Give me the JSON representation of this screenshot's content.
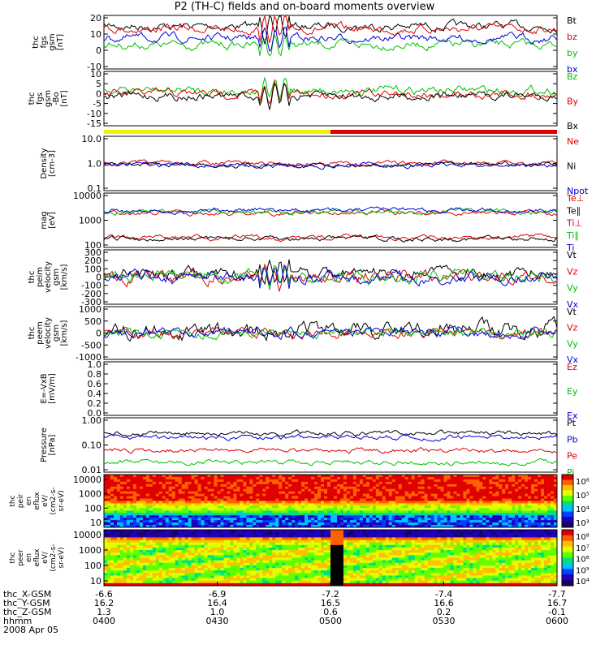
{
  "title": "P2 (TH-C) fields and on-board moments overview",
  "date": "2008 Apr 05",
  "colors": {
    "black": "#000000",
    "red": "#e00000",
    "blue": "#0000e0",
    "green": "#00c000",
    "yellow": "#f4f400"
  },
  "chart_data": [
    {
      "type": "line",
      "id": "fgs",
      "ylabel": "thc\nfgs\ngsm\n[nT]",
      "yticks": [
        "20",
        "10",
        "0",
        "-10"
      ],
      "ylim": [
        -20,
        20
      ],
      "series": [
        {
          "name": "Bt",
          "color": "black",
          "level": 12
        },
        {
          "name": "bz",
          "color": "red",
          "level": 10
        },
        {
          "name": "by",
          "color": "green",
          "level": -2
        },
        {
          "name": "bx",
          "color": "blue",
          "level": 3
        }
      ]
    },
    {
      "type": "line",
      "id": "fgs_dsl",
      "ylabel": "thc\nfgs\ngsm\n-Bo\n[nT]",
      "yticks": [
        "10",
        "5",
        "0",
        "-5",
        "-10",
        "-15"
      ],
      "ylim": [
        -17,
        12
      ],
      "series": [
        {
          "name": "Bz",
          "color": "green",
          "level": 2
        },
        {
          "name": "By",
          "color": "red",
          "level": 0
        },
        {
          "name": "Bx",
          "color": "black",
          "level": -1
        }
      ]
    },
    {
      "type": "line",
      "id": "density",
      "ylabel": "Density\n[cm-3]",
      "yticks": [
        "10.0",
        "1.0",
        "0.1"
      ],
      "log": true,
      "series": [
        {
          "name": "Ne",
          "color": "red",
          "level": 1.0
        },
        {
          "name": "Ni",
          "color": "black",
          "level": 0.9
        },
        {
          "name": "Npot",
          "color": "blue",
          "level": 0.85
        }
      ]
    },
    {
      "type": "line",
      "id": "temp",
      "ylabel": "mag\n[eV]",
      "yticks": [
        "10000",
        "1000",
        "100"
      ],
      "log": true,
      "series": [
        {
          "name": "Te⊥",
          "color": "red",
          "level": 200
        },
        {
          "name": "Te∥",
          "color": "black",
          "level": 180
        },
        {
          "name": "Ti⊥",
          "color": "red",
          "level": 2000
        },
        {
          "name": "Ti∥",
          "color": "green",
          "level": 2200
        },
        {
          "name": "Ti",
          "color": "blue",
          "level": 2500
        }
      ]
    },
    {
      "type": "line",
      "id": "peim",
      "ylabel": "thc\npeim\nvelocity\ngsm\n[km/s]",
      "yticks": [
        "300",
        "200",
        "100",
        "0",
        "-100",
        "-200",
        "-300"
      ],
      "ylim": [
        -300,
        300
      ],
      "series": [
        {
          "name": "Vt",
          "color": "black",
          "level": 50
        },
        {
          "name": "Vz",
          "color": "red",
          "level": 0
        },
        {
          "name": "Vy",
          "color": "green",
          "level": 0
        },
        {
          "name": "Vx",
          "color": "blue",
          "level": 0
        }
      ]
    },
    {
      "type": "line",
      "id": "peem",
      "ylabel": "thc\npeem\nvelocity\ngsm\n[km/s]",
      "yticks": [
        "1000",
        "500",
        "0",
        "-500",
        "-1000"
      ],
      "ylim": [
        -1000,
        1000
      ],
      "series": [
        {
          "name": "Vt",
          "color": "black",
          "level": 100
        },
        {
          "name": "Vz",
          "color": "red",
          "level": 0
        },
        {
          "name": "Vy",
          "color": "green",
          "level": 0
        },
        {
          "name": "Vx",
          "color": "blue",
          "level": 0
        }
      ]
    },
    {
      "type": "line",
      "id": "efield",
      "ylabel": "E=-VxB\n[mV/m]",
      "yticks": [
        "1.0",
        "0.8",
        "0.6",
        "0.4",
        "0.2",
        "0.0"
      ],
      "ylim": [
        0,
        1
      ],
      "series": [
        {
          "name": "Ez",
          "color": "red"
        },
        {
          "name": "Ey",
          "color": "green"
        },
        {
          "name": "Ex",
          "color": "blue"
        }
      ]
    },
    {
      "type": "line",
      "id": "pressure",
      "ylabel": "Pressure\n[nPa]",
      "yticks": [
        "1.00",
        "0.10",
        "0.01"
      ],
      "log": true,
      "series": [
        {
          "name": "Pt",
          "color": "black",
          "level": 0.3
        },
        {
          "name": "Pb",
          "color": "blue",
          "level": 0.2
        },
        {
          "name": "Pe",
          "color": "red",
          "level": 0.06
        },
        {
          "name": "Pi",
          "color": "green",
          "level": 0.02
        }
      ]
    },
    {
      "type": "heatmap",
      "id": "peir",
      "ylabel": "thc\npeir\nen\neflux\neV/\n(cm2-s-\nsr-eV)",
      "yticks": [
        "10000",
        "1000",
        "100",
        "10"
      ],
      "colorbar": [
        "10⁶",
        "10⁵",
        "10⁴",
        "10³"
      ]
    },
    {
      "type": "heatmap",
      "id": "peer",
      "ylabel": "thc\npeer\nen\neflux\neV/\n(cm2-s-\nsr-eV)",
      "yticks": [
        "10000",
        "1000",
        "100",
        "10"
      ],
      "colorbar": [
        "10⁸",
        "10⁷",
        "10⁶",
        "10⁵",
        "10⁴"
      ]
    }
  ],
  "xaxis": {
    "labels": [
      "thc_X-GSM",
      "thc_Y-GSM",
      "thc_Z-GSM",
      "hhmm",
      "2008 Apr 05"
    ],
    "columns": [
      {
        "x": "-6.6",
        "y": "16.2",
        "z": "1.3",
        "t": "0400"
      },
      {
        "x": "-6.9",
        "y": "16.4",
        "z": "1.0",
        "t": "0430"
      },
      {
        "x": "-7.2",
        "y": "16.5",
        "z": "0.6",
        "t": "0500"
      },
      {
        "x": "-7.4",
        "y": "16.6",
        "z": "0.2",
        "t": "0530"
      },
      {
        "x": "-7.7",
        "y": "16.7",
        "z": "-0.1",
        "t": "0600"
      }
    ]
  },
  "mode_bar": {
    "colors": [
      "yellow",
      "red"
    ],
    "split_fraction": 0.5
  }
}
